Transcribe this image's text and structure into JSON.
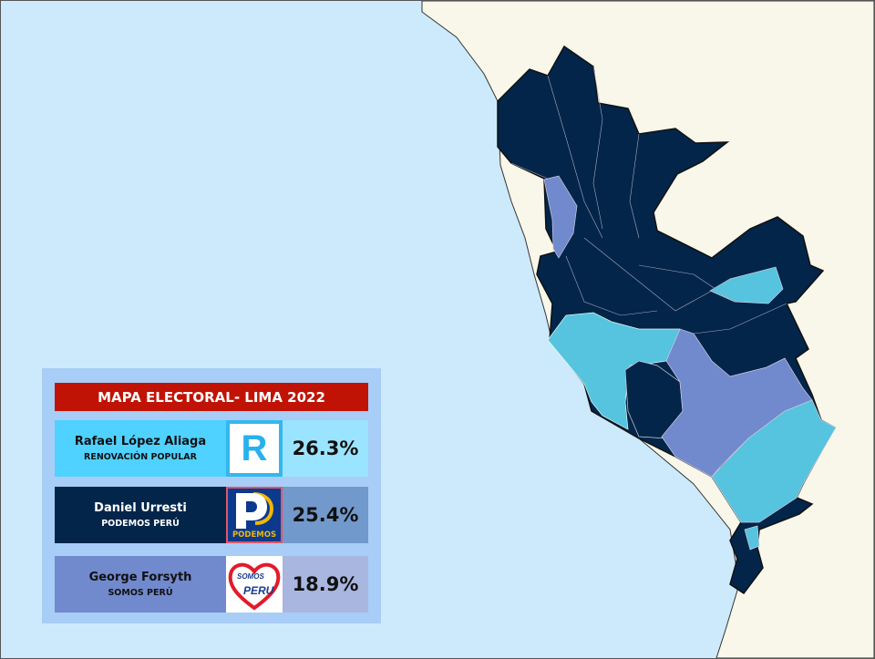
{
  "legend": {
    "title": "MAPA ELECTORAL- LIMA 2022",
    "candidates": [
      {
        "name": "Rafael López Aliaga",
        "party": "RENOVACIÓN POPULAR",
        "percent": "26.3%",
        "logo": "R",
        "color": "#4fd2ff",
        "pct_bg": "#9be4ff",
        "text_color": "#111111"
      },
      {
        "name": "Daniel Urresti",
        "party": "PODEMOS PERÚ",
        "percent": "25.4%",
        "logo": "PODEMOS",
        "color": "#03254a",
        "pct_bg": "#7299cc",
        "text_color": "#ffffff"
      },
      {
        "name": "George Forsyth",
        "party": "SOMOS PERÚ",
        "percent": "18.9%",
        "logo": "SOMOS PERU",
        "color": "#7189cd",
        "pct_bg": "#a9b6e0",
        "text_color": "#111111"
      }
    ]
  },
  "map": {
    "sea_color": "#cdeafc",
    "land_color": "#f8f7ea",
    "region_colors": {
      "renovacion_popular": "#56c3df",
      "podemos": "#03254a",
      "somos_peru": "#7189cd"
    }
  }
}
